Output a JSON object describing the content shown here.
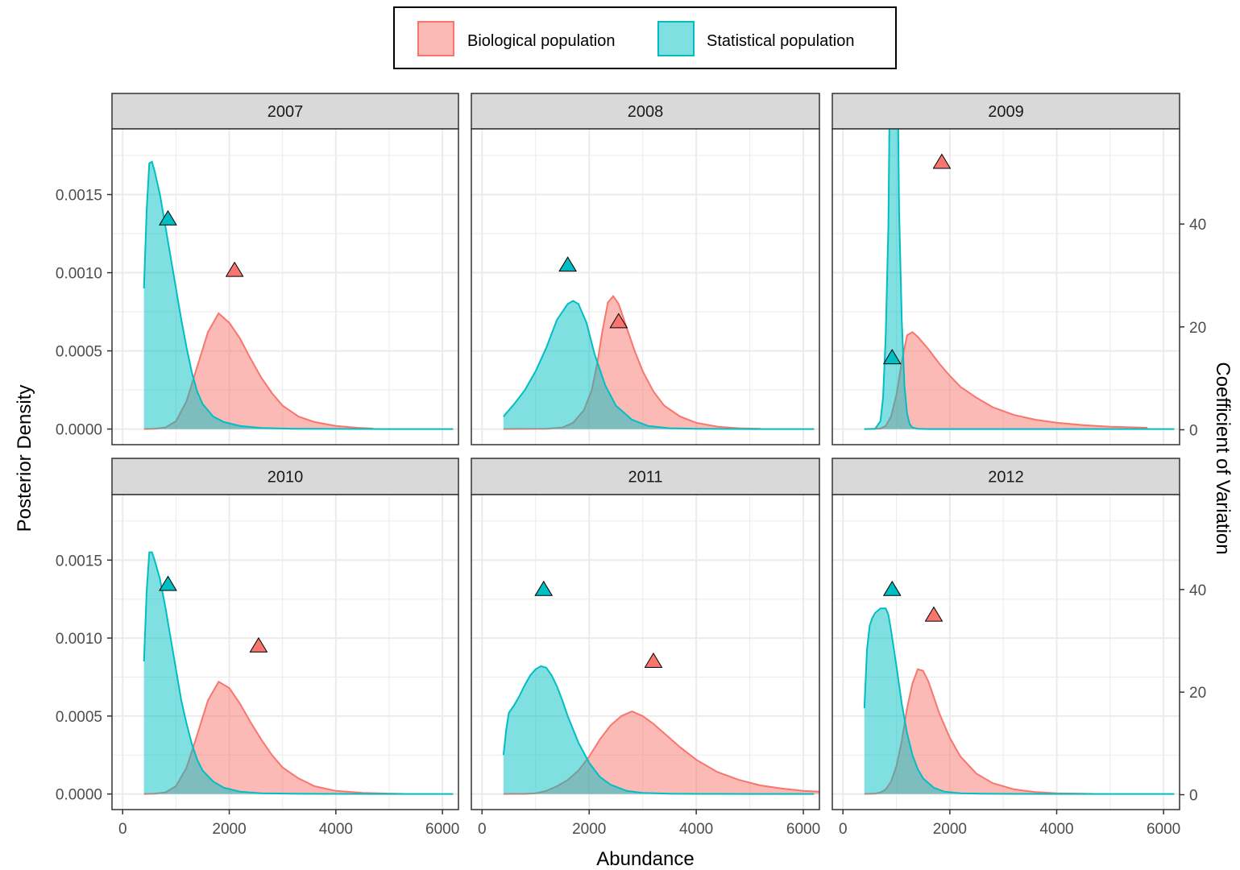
{
  "chart_data": {
    "type": "area",
    "xlabel": "Abundance",
    "ylabel": "Posterior Density",
    "y2label": "Coefficient of Variation",
    "xlim": [
      -200,
      6300
    ],
    "ylim": [
      -0.0001,
      0.00192
    ],
    "y2lim": [
      -2.9,
      58.5
    ],
    "x_ticks": [
      0,
      2000,
      4000,
      6000
    ],
    "x_tick_labels": [
      "0",
      "2000",
      "4000",
      "6000"
    ],
    "y_ticks": [
      0,
      0.0005,
      0.001,
      0.0015
    ],
    "y_tick_labels": [
      "0.0000",
      "0.0005",
      "0.0010",
      "0.0015"
    ],
    "y2_ticks": [
      0,
      20,
      40
    ],
    "y2_tick_labels": [
      "0",
      "20",
      "40"
    ],
    "grid": true,
    "legend": {
      "position": "top",
      "entries": [
        {
          "name": "Biological population",
          "fill": "#F8766D",
          "stroke": "#F8766D"
        },
        {
          "name": "Statistical population",
          "fill": "#00BFC4",
          "stroke": "#00BFC4"
        }
      ]
    },
    "colors": {
      "biological": "#F8766D",
      "statistical": "#00BFC4",
      "strip_fill": "#d9d9d9",
      "grid": "#ebebeb",
      "panel_border": "#333333"
    },
    "panels": [
      {
        "facet": "2007",
        "series": [
          {
            "name": "Biological population",
            "x": [
              400,
              600,
              800,
              1000,
              1200,
              1400,
              1600,
              1800,
              2000,
              2200,
              2400,
              2600,
              2800,
              3000,
              3300,
              3600,
              4000,
              4400,
              4700
            ],
            "y": [
              0,
              2e-06,
              1e-05,
              5e-05,
              0.00018,
              0.0004,
              0.00062,
              0.00074,
              0.00068,
              0.00058,
              0.00045,
              0.00033,
              0.00023,
              0.00015,
              8e-05,
              4.5e-05,
              2e-05,
              8e-06,
              3e-06
            ]
          },
          {
            "name": "Statistical population",
            "x": [
              400,
              450,
              500,
              550,
              600,
              700,
              800,
              900,
              1000,
              1100,
              1200,
              1300,
              1400,
              1500,
              1700,
              1900,
              2200,
              2600,
              3200,
              4000,
              5000,
              6200
            ],
            "y": [
              0.0009,
              0.0014,
              0.0017,
              0.00171,
              0.00165,
              0.0015,
              0.0013,
              0.0011,
              0.0009,
              0.0007,
              0.00052,
              0.00036,
              0.00024,
              0.00016,
              8e-05,
              4.5e-05,
              2e-05,
              7e-06,
              2e-06,
              1e-06,
              0,
              0
            ]
          }
        ],
        "cv_points": [
          {
            "series": "Statistical population",
            "x": 850,
            "cv": 41
          },
          {
            "series": "Biological population",
            "x": 2100,
            "cv": 31
          }
        ]
      },
      {
        "facet": "2008",
        "series": [
          {
            "name": "Biological population",
            "x": [
              400,
              1200,
              1500,
              1700,
              1900,
              2050,
              2150,
              2250,
              2350,
              2450,
              2550,
              2700,
              2850,
              3000,
              3200,
              3400,
              3700,
              4000,
              4400,
              4800,
              5200
            ],
            "y": [
              0,
              2e-06,
              1e-05,
              4e-05,
              0.00012,
              0.00025,
              0.00042,
              0.00063,
              0.00081,
              0.00085,
              0.0008,
              0.00065,
              0.0005,
              0.00037,
              0.00024,
              0.00015,
              8e-05,
              4e-05,
              1.5e-05,
              5e-06,
              2e-06
            ]
          },
          {
            "name": "Statistical population",
            "x": [
              400,
              450,
              600,
              800,
              1000,
              1200,
              1400,
              1600,
              1700,
              1800,
              1950,
              2100,
              2300,
              2500,
              2800,
              3100,
              3500,
              4000,
              5000,
              6200
            ],
            "y": [
              8e-05,
              0.0001,
              0.00016,
              0.00025,
              0.00037,
              0.00052,
              0.0007,
              0.0008,
              0.00082,
              0.0008,
              0.00068,
              0.00048,
              0.00028,
              0.00015,
              6e-05,
              2e-05,
              5e-06,
              2e-06,
              0,
              0
            ]
          }
        ],
        "cv_points": [
          {
            "series": "Statistical population",
            "x": 1600,
            "cv": 32
          },
          {
            "series": "Biological population",
            "x": 2550,
            "cv": 21
          }
        ]
      },
      {
        "facet": "2009",
        "series": [
          {
            "name": "Biological population",
            "x": [
              400,
              700,
              800,
              900,
              1000,
              1100,
              1200,
              1300,
              1400,
              1600,
              1800,
              2000,
              2200,
              2500,
              2800,
              3200,
              3600,
              4000,
              4500,
              5000,
              5700
            ],
            "y": [
              0,
              3e-06,
              2e-05,
              8e-05,
              0.00022,
              0.00043,
              0.0006,
              0.00062,
              0.00059,
              0.00051,
              0.00042,
              0.00034,
              0.00027,
              0.0002,
              0.00014,
              9e-05,
              6e-05,
              4e-05,
              2.5e-05,
              1.5e-05,
              8e-06
            ]
          },
          {
            "name": "Statistical population",
            "x": [
              400,
              600,
              700,
              750,
              800,
              850,
              900,
              1000,
              1050,
              1100,
              1150,
              1200,
              1250,
              1300,
              1400,
              1600,
              2000,
              3000,
              4500,
              6200
            ],
            "y": [
              0,
              1e-06,
              5e-05,
              0.0002,
              0.0006,
              0.0013,
              0.003,
              0.003,
              0.0014,
              0.0007,
              0.00028,
              0.0001,
              3e-05,
              1e-05,
              2e-06,
              0,
              0,
              0,
              0,
              0
            ]
          }
        ],
        "cv_points": [
          {
            "series": "Biological population",
            "x": 1850,
            "cv": 52
          },
          {
            "series": "Statistical population",
            "x": 920,
            "cv": 14
          }
        ]
      },
      {
        "facet": "2010",
        "series": [
          {
            "name": "Biological population",
            "x": [
              400,
              600,
              800,
              1000,
              1200,
              1400,
              1600,
              1800,
              2000,
              2200,
              2400,
              2600,
              2800,
              3000,
              3300,
              3600,
              4000,
              4500,
              5000,
              5300
            ],
            "y": [
              0,
              2e-06,
              1e-05,
              5e-05,
              0.00017,
              0.00038,
              0.0006,
              0.00072,
              0.00068,
              0.00058,
              0.00046,
              0.00035,
              0.00025,
              0.00017,
              0.0001,
              5e-05,
              2e-05,
              7e-06,
              3e-06,
              1e-06
            ]
          },
          {
            "name": "Statistical population",
            "x": [
              400,
              450,
              500,
              550,
              600,
              700,
              800,
              900,
              1000,
              1100,
              1200,
              1300,
              1400,
              1500,
              1700,
              1900,
              2200,
              2600,
              3200,
              4000,
              5000,
              6200
            ],
            "y": [
              0.00085,
              0.0013,
              0.00155,
              0.00155,
              0.0015,
              0.00138,
              0.0012,
              0.001,
              0.0008,
              0.0006,
              0.00045,
              0.00032,
              0.00022,
              0.00015,
              8e-05,
              4e-05,
              1.5e-05,
              5e-06,
              2e-06,
              1e-06,
              0,
              0
            ]
          }
        ],
        "cv_points": [
          {
            "series": "Statistical population",
            "x": 850,
            "cv": 41
          },
          {
            "series": "Biological population",
            "x": 2550,
            "cv": 29
          }
        ]
      },
      {
        "facet": "2011",
        "series": [
          {
            "name": "Biological population",
            "x": [
              400,
              800,
              1000,
              1200,
              1400,
              1600,
              1800,
              2000,
              2200,
              2400,
              2600,
              2800,
              3000,
              3200,
              3400,
              3700,
              4000,
              4400,
              4800,
              5200,
              5600,
              6000,
              6300
            ],
            "y": [
              0,
              1e-06,
              5e-06,
              2e-05,
              5e-05,
              9e-05,
              0.00015,
              0.00024,
              0.00035,
              0.00044,
              0.0005,
              0.00053,
              0.0005,
              0.00045,
              0.00039,
              0.0003,
              0.00022,
              0.00014,
              9e-05,
              5.5e-05,
              3.5e-05,
              2e-05,
              1.5e-05
            ]
          },
          {
            "name": "Statistical population",
            "x": [
              400,
              450,
              500,
              600,
              700,
              800,
              900,
              1000,
              1100,
              1200,
              1300,
              1400,
              1500,
              1600,
              1800,
              2000,
              2200,
              2400,
              2700,
              3000,
              3500,
              4000,
              5000,
              6200
            ],
            "y": [
              0.00025,
              0.00041,
              0.00052,
              0.00057,
              0.00063,
              0.0007,
              0.00076,
              0.0008,
              0.00082,
              0.00081,
              0.00076,
              0.00069,
              0.0006,
              0.0005,
              0.00033,
              0.0002,
              0.00011,
              6e-05,
              2e-05,
              7e-06,
              2e-06,
              1e-06,
              0,
              0
            ]
          }
        ],
        "cv_points": [
          {
            "series": "Statistical population",
            "x": 1150,
            "cv": 40
          },
          {
            "series": "Biological population",
            "x": 3200,
            "cv": 26
          }
        ]
      },
      {
        "facet": "2012",
        "series": [
          {
            "name": "Biological population",
            "x": [
              400,
              600,
              700,
              800,
              900,
              1000,
              1100,
              1200,
              1300,
              1400,
              1500,
              1600,
              1700,
              1800,
              2000,
              2200,
              2500,
              2800,
              3200,
              3600,
              4000,
              4500,
              4700
            ],
            "y": [
              0,
              3e-06,
              1e-05,
              3e-05,
              8e-05,
              0.00018,
              0.00034,
              0.00055,
              0.00071,
              0.0008,
              0.00079,
              0.00072,
              0.00062,
              0.00052,
              0.00036,
              0.00024,
              0.00013,
              7e-05,
              3e-05,
              1.2e-05,
              5e-06,
              2e-06,
              1e-06
            ]
          },
          {
            "name": "Statistical population",
            "x": [
              400,
              450,
              500,
              550,
              600,
              700,
              800,
              850,
              900,
              1000,
              1100,
              1200,
              1300,
              1400,
              1500,
              1700,
              1900,
              2200,
              2600,
              3200,
              4000,
              5000,
              6200
            ],
            "y": [
              0.00055,
              0.00093,
              0.00108,
              0.00113,
              0.00116,
              0.00119,
              0.00119,
              0.00115,
              0.00105,
              0.00082,
              0.00058,
              0.00039,
              0.00025,
              0.00016,
              0.0001,
              4e-05,
              1.5e-05,
              5e-06,
              2e-06,
              1e-06,
              0,
              0,
              0
            ]
          }
        ],
        "cv_points": [
          {
            "series": "Statistical population",
            "x": 920,
            "cv": 40
          },
          {
            "series": "Biological population",
            "x": 1700,
            "cv": 35
          }
        ]
      }
    ]
  }
}
